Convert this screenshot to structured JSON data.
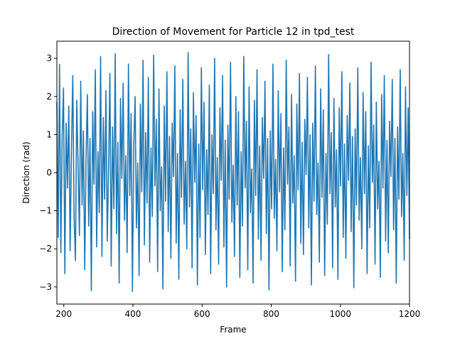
{
  "chart_data": {
    "type": "line",
    "title": "Direction of Movement for Particle 12 in tpd_test",
    "xlabel": "Frame",
    "ylabel": "Direction (rad)",
    "xlim": [
      180,
      1200
    ],
    "ylim": [
      -3.45,
      3.45
    ],
    "grid": false,
    "x_ticks": [
      200,
      400,
      600,
      800,
      1000,
      1200
    ],
    "y_ticks": [
      -3,
      -2,
      -1,
      0,
      1,
      2,
      3
    ],
    "series": [
      {
        "color": "#1f77b4",
        "x_start": 180,
        "x_end": 1200,
        "values": [
          1.85,
          -1.7,
          2.84,
          -2.1,
          0.95,
          2.22,
          -2.65,
          1.3,
          -0.4,
          1.75,
          -2.05,
          0.6,
          2.55,
          -1.2,
          -2.3,
          1.9,
          0.2,
          -1.65,
          2.4,
          -0.85,
          1.1,
          -2.55,
          0.35,
          2.05,
          -1.4,
          0.9,
          -3.1,
          1.6,
          -0.3,
          2.7,
          -1.95,
          0.55,
          -1.05,
          3.05,
          -2.2,
          1.45,
          -0.7,
          2.15,
          -1.8,
          0.1,
          2.6,
          -2.45,
          1.2,
          -0.95,
          3.12,
          -1.6,
          0.8,
          -2.9,
          1.95,
          -0.15,
          2.35,
          -1.25,
          0.45,
          -2.1,
          2.85,
          -0.6,
          1.55,
          -3.12,
          0.7,
          2.0,
          -1.45,
          0.25,
          -2.7,
          1.8,
          -0.5,
          2.95,
          -1.9,
          1.05,
          -0.8,
          2.5,
          -2.35,
          0.65,
          -1.15,
          3.08,
          -0.35,
          1.4,
          -2.6,
          2.2,
          -1.0,
          0.15,
          -3.05,
          1.75,
          -0.75,
          2.65,
          -1.55,
          0.95,
          -2.25,
          1.3,
          -0.1,
          2.8,
          -1.85,
          0.5,
          -2.8,
          1.65,
          -0.65,
          2.45,
          -1.35,
          0.3,
          -2.0,
          3.15,
          -0.9,
          1.15,
          -2.5,
          2.1,
          -0.25,
          1.5,
          -2.95,
          0.75,
          -1.7,
          2.75,
          -0.45,
          1.85,
          -2.15,
          0.6,
          -1.1,
          2.3,
          -2.65,
          1.0,
          -0.55,
          3.0,
          -1.5,
          0.4,
          -2.4,
          1.7,
          -0.2,
          2.55,
          -1.95,
          0.85,
          -3.0,
          1.25,
          -0.7,
          2.9,
          -1.3,
          0.2,
          -2.2,
          2.0,
          -0.85,
          1.6,
          -2.75,
          0.55,
          -1.4,
          3.05,
          -0.4,
          1.35,
          -2.55,
          2.25,
          -1.05,
          0.1,
          -2.9,
          1.9,
          -0.6,
          2.7,
          -1.75,
          0.7,
          -2.3,
          1.45,
          -0.15,
          2.4,
          -1.6,
          0.9,
          -3.08,
          1.1,
          -0.95,
          2.85,
          -1.2,
          0.35,
          -2.05,
          2.15,
          -0.5,
          1.55,
          -2.6,
          0.65,
          -1.5,
          2.95,
          -0.3,
          1.2,
          -2.45,
          2.05,
          -0.8,
          0.45,
          -2.85,
          1.8,
          -0.45,
          2.6,
          -1.85,
          0.8,
          -2.15,
          1.4,
          -0.05,
          2.5,
          -1.45,
          1.0,
          -2.95,
          1.3,
          -0.75,
          2.8,
          -1.1,
          0.25,
          -2.35,
          2.2,
          -0.65,
          1.65,
          -2.7,
          0.5,
          -1.35,
          3.1,
          -0.55,
          1.05,
          -2.5,
          1.95,
          -0.9,
          0.6,
          -2.8,
          1.7,
          -0.35,
          2.65,
          -1.7,
          0.75,
          -2.25,
          1.5,
          -0.2,
          2.35,
          -1.55,
          0.95,
          -3.02,
          1.15,
          -0.85,
          2.75,
          -1.25,
          0.4,
          -2.0,
          2.1,
          -0.55,
          1.6,
          -2.65,
          0.7,
          -1.45,
          2.9,
          -0.25,
          1.25,
          -2.4,
          1.85,
          -0.95,
          0.3,
          -2.75,
          2.05,
          -0.4,
          2.55,
          -1.8,
          0.85,
          -2.1,
          1.35,
          -0.1,
          2.45,
          -1.5,
          0.9,
          -2.9,
          1.2,
          -0.7,
          2.7,
          -1.15,
          0.5,
          -2.3,
          2.25,
          -0.6,
          1.7,
          -1.75
        ]
      }
    ]
  }
}
